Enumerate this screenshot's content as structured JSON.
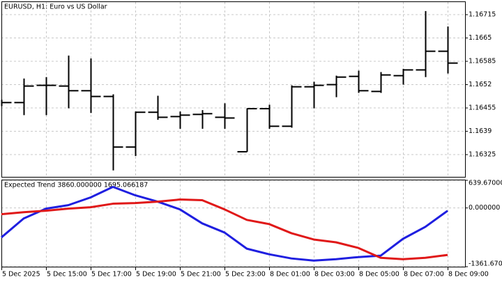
{
  "chart_data": [
    {
      "type": "ohlc",
      "title": "EURUSD, H1:  Euro vs US Dollar",
      "color": "#000000",
      "grid": true,
      "categories": [
        "5 Dec 2025",
        null,
        "5 Dec 15:00",
        null,
        "5 Dec 17:00",
        null,
        "5 Dec 19:00",
        null,
        "5 Dec 21:00",
        null,
        "5 Dec 23:00",
        null,
        "8 Dec 01:00",
        null,
        "8 Dec 03:00",
        null,
        "8 Dec 05:00",
        null,
        "8 Dec 07:00",
        null,
        "8 Dec 09:00"
      ],
      "open": [
        1.1647,
        1.1647,
        1.16518,
        1.16516,
        1.16503,
        1.16487,
        1.16346,
        1.16443,
        1.16431,
        1.16437,
        1.16429,
        1.16333,
        1.16453,
        1.16404,
        1.16514,
        1.1652,
        1.16543,
        1.16501,
        1.16545,
        1.16561,
        1.16613
      ],
      "high": [
        1.16478,
        1.16537,
        1.16541,
        1.16601,
        1.16593,
        1.16493,
        1.16445,
        1.16489,
        1.16445,
        1.16449,
        1.16468,
        1.16454,
        1.16464,
        1.16518,
        1.16528,
        1.16545,
        1.16559,
        1.16555,
        1.16564,
        1.16725,
        1.16682
      ],
      "low": [
        1.1646,
        1.16435,
        1.16435,
        1.16454,
        1.16441,
        1.16281,
        1.16321,
        1.16422,
        1.16397,
        1.16397,
        1.16397,
        1.16333,
        1.16397,
        1.164,
        1.16454,
        1.16485,
        1.16497,
        1.16497,
        1.1652,
        1.16541,
        1.16551
      ],
      "close": [
        1.1647,
        1.16516,
        1.16518,
        1.16503,
        1.16487,
        1.16346,
        1.16443,
        1.16429,
        1.16435,
        1.16439,
        1.16427,
        1.16453,
        1.16404,
        1.16514,
        1.16518,
        1.16541,
        1.16503,
        1.16547,
        1.16561,
        1.16613,
        1.1658
      ],
      "ylim": [
        1.16263,
        1.1675
      ],
      "yticks": [
        1.16325,
        1.1639,
        1.16455,
        1.1652,
        1.16585,
        1.1665,
        1.16715
      ]
    },
    {
      "type": "line",
      "title": "Expected Trend 3860.000000 1695.066187",
      "grid": true,
      "series": [
        {
          "name": "Blue",
          "color": "#1f1fe0",
          "values": [
            -683,
            -244,
            -16,
            65,
            244,
            488,
            293,
            146,
            -33,
            -358,
            -570,
            -944,
            -1074,
            -1171,
            -1220,
            -1188,
            -1139,
            -1106,
            -716,
            -439,
            -65
          ]
        },
        {
          "name": "Red",
          "color": "#e01818",
          "values": [
            -146,
            -98,
            -65,
            -16,
            16,
            98,
            114,
            146,
            195,
            179,
            -33,
            -277,
            -374,
            -586,
            -732,
            -797,
            -927,
            -1155,
            -1188,
            -1155,
            -1090
          ]
        }
      ],
      "ylim": [
        -1361.67,
        639.67
      ],
      "yticks": [
        {
          "value": -1361.67,
          "label": "-1361.67000"
        },
        {
          "value": 0,
          "label": "0.000000"
        },
        {
          "value": 639.67,
          "label": "639.670000"
        }
      ]
    }
  ]
}
